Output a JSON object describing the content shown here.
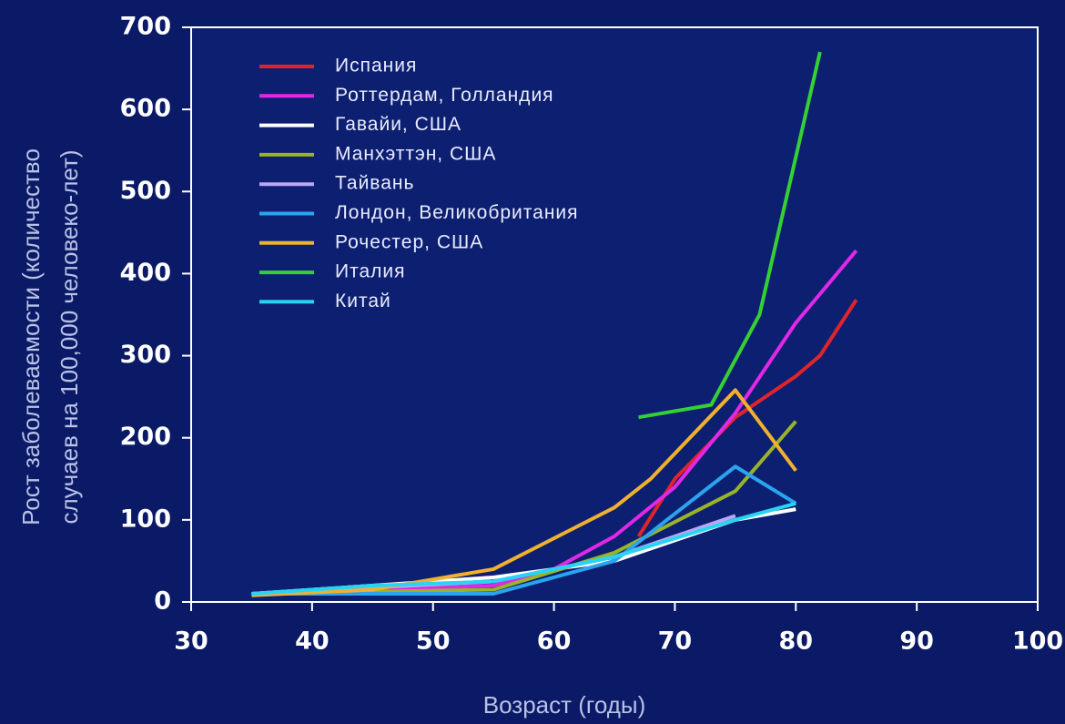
{
  "chart_data": {
    "type": "line",
    "x_label": "Возраст (годы)",
    "y_label": [
      "Рост заболеваемости (количество",
      "случаев на 100,000 человеко-лет)"
    ],
    "xlim": [
      30,
      100
    ],
    "xticks": [
      30,
      40,
      50,
      60,
      70,
      80,
      90,
      100
    ],
    "ylim": [
      0,
      700
    ],
    "yticks": [
      0,
      100,
      200,
      300,
      400,
      500,
      600,
      700
    ],
    "legend": "top-left",
    "series": [
      {
        "name": "Испания",
        "color": "#e0242c",
        "x": [
          67,
          70,
          75,
          80,
          82,
          85
        ],
        "values": [
          80,
          150,
          225,
          275,
          300,
          368
        ]
      },
      {
        "name": "Роттердам, Голландия",
        "color": "#e028e8",
        "x": [
          35,
          55,
          60,
          65,
          70,
          75,
          80,
          85
        ],
        "values": [
          10,
          20,
          40,
          80,
          140,
          230,
          340,
          428
        ]
      },
      {
        "name": "Гавайи, США",
        "color": "#ffffff",
        "x": [
          35,
          55,
          65,
          75,
          80
        ],
        "values": [
          10,
          30,
          50,
          100,
          113
        ]
      },
      {
        "name": "Манхэттэн, США",
        "color": "#98b428",
        "x": [
          35,
          55,
          65,
          75,
          80
        ],
        "values": [
          10,
          15,
          60,
          135,
          220
        ]
      },
      {
        "name": "Тайвань",
        "color": "#b8a8f4",
        "x": [
          35,
          55,
          65,
          75
        ],
        "values": [
          10,
          25,
          55,
          105
        ]
      },
      {
        "name": "Лондон, Великобритания",
        "color": "#2aa4f0",
        "x": [
          35,
          55,
          65,
          75,
          80
        ],
        "values": [
          10,
          10,
          50,
          165,
          120
        ]
      },
      {
        "name": "Рочестер, США",
        "color": "#f0b030",
        "x": [
          35,
          45,
          55,
          65,
          68,
          75,
          80
        ],
        "values": [
          8,
          15,
          40,
          115,
          150,
          258,
          160
        ]
      },
      {
        "name": "Италия",
        "color": "#34d034",
        "x": [
          67,
          73,
          77,
          82
        ],
        "values": [
          225,
          240,
          350,
          670
        ]
      },
      {
        "name": "Китай",
        "color": "#28d4f4",
        "x": [
          35,
          45,
          55,
          65,
          75,
          80
        ],
        "values": [
          10,
          20,
          25,
          55,
          100,
          120
        ]
      }
    ]
  }
}
